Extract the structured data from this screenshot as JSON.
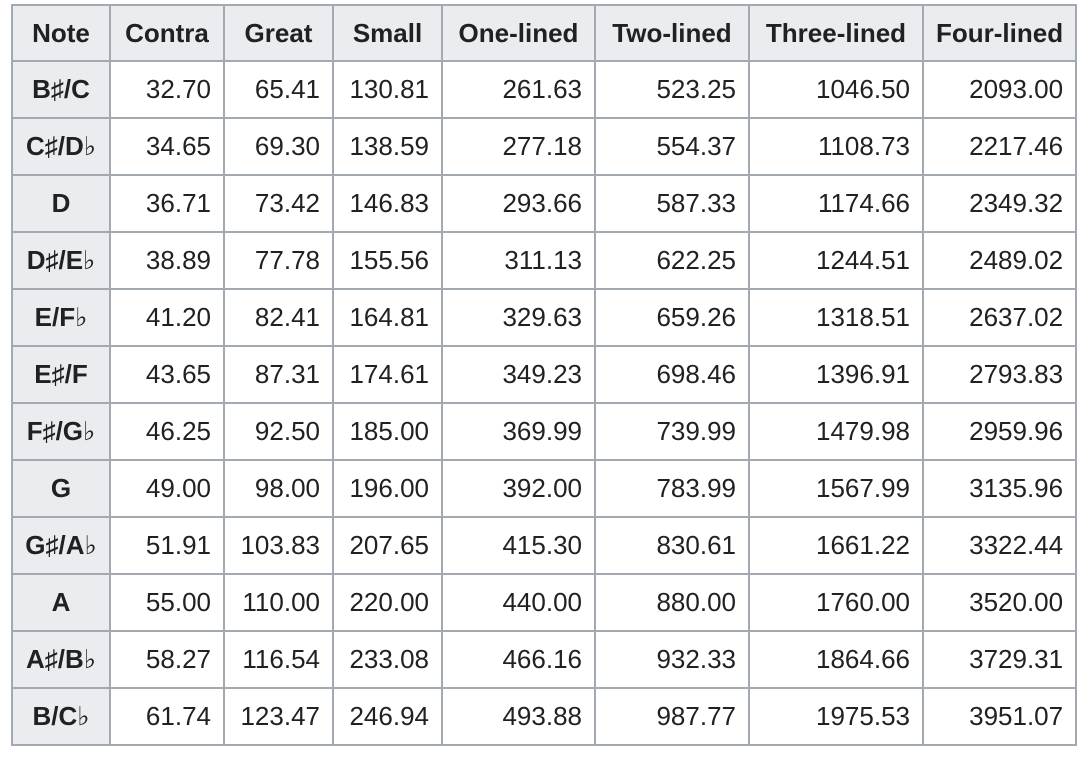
{
  "table": {
    "headers": [
      "Note",
      "Contra",
      "Great",
      "Small",
      "One-lined",
      "Two-lined",
      "Three-lined",
      "Four-lined"
    ],
    "rows": [
      {
        "note": "B♯/C",
        "values": [
          "32.70",
          "65.41",
          "130.81",
          "261.63",
          "523.25",
          "1046.50",
          "2093.00"
        ]
      },
      {
        "note": "C♯/D♭",
        "values": [
          "34.65",
          "69.30",
          "138.59",
          "277.18",
          "554.37",
          "1108.73",
          "2217.46"
        ]
      },
      {
        "note": "D",
        "values": [
          "36.71",
          "73.42",
          "146.83",
          "293.66",
          "587.33",
          "1174.66",
          "2349.32"
        ]
      },
      {
        "note": "D♯/E♭",
        "values": [
          "38.89",
          "77.78",
          "155.56",
          "311.13",
          "622.25",
          "1244.51",
          "2489.02"
        ]
      },
      {
        "note": "E/F♭",
        "values": [
          "41.20",
          "82.41",
          "164.81",
          "329.63",
          "659.26",
          "1318.51",
          "2637.02"
        ]
      },
      {
        "note": "E♯/F",
        "values": [
          "43.65",
          "87.31",
          "174.61",
          "349.23",
          "698.46",
          "1396.91",
          "2793.83"
        ]
      },
      {
        "note": "F♯/G♭",
        "values": [
          "46.25",
          "92.50",
          "185.00",
          "369.99",
          "739.99",
          "1479.98",
          "2959.96"
        ]
      },
      {
        "note": "G",
        "values": [
          "49.00",
          "98.00",
          "196.00",
          "392.00",
          "783.99",
          "1567.99",
          "3135.96"
        ]
      },
      {
        "note": "G♯/A♭",
        "values": [
          "51.91",
          "103.83",
          "207.65",
          "415.30",
          "830.61",
          "1661.22",
          "3322.44"
        ]
      },
      {
        "note": "A",
        "values": [
          "55.00",
          "110.00",
          "220.00",
          "440.00",
          "880.00",
          "1760.00",
          "3520.00"
        ]
      },
      {
        "note": "A♯/B♭",
        "values": [
          "58.27",
          "116.54",
          "233.08",
          "466.16",
          "932.33",
          "1864.66",
          "3729.31"
        ]
      },
      {
        "note": "B/C♭",
        "values": [
          "61.74",
          "123.47",
          "246.94",
          "493.88",
          "987.77",
          "1975.53",
          "3951.07"
        ]
      }
    ]
  }
}
